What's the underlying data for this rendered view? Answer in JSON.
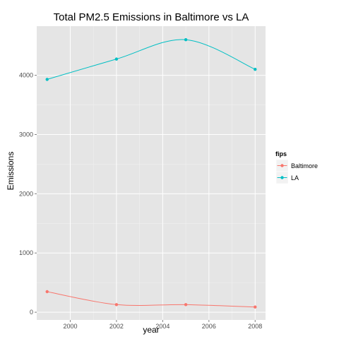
{
  "chart_data": {
    "type": "line",
    "title": "Total PM2.5 Emissions in Baltimore vs LA",
    "xlabel": "year",
    "ylabel": "Emissions",
    "x": [
      1999,
      2002,
      2005,
      2008
    ],
    "xlim": [
      1998.55,
      2008.45
    ],
    "ylim": [
      -130,
      4830
    ],
    "x_ticks": [
      2000,
      2002,
      2004,
      2006,
      2008
    ],
    "y_ticks": [
      0,
      1000,
      2000,
      3000,
      4000
    ],
    "grid": true,
    "legend": {
      "title": "fips",
      "position": "right"
    },
    "series": [
      {
        "name": "Baltimore",
        "color": "#F8766D",
        "values": [
          347,
          129,
          128,
          88
        ]
      },
      {
        "name": "LA",
        "color": "#00BFC4",
        "values": [
          3931,
          4274,
          4601,
          4101
        ]
      }
    ]
  }
}
